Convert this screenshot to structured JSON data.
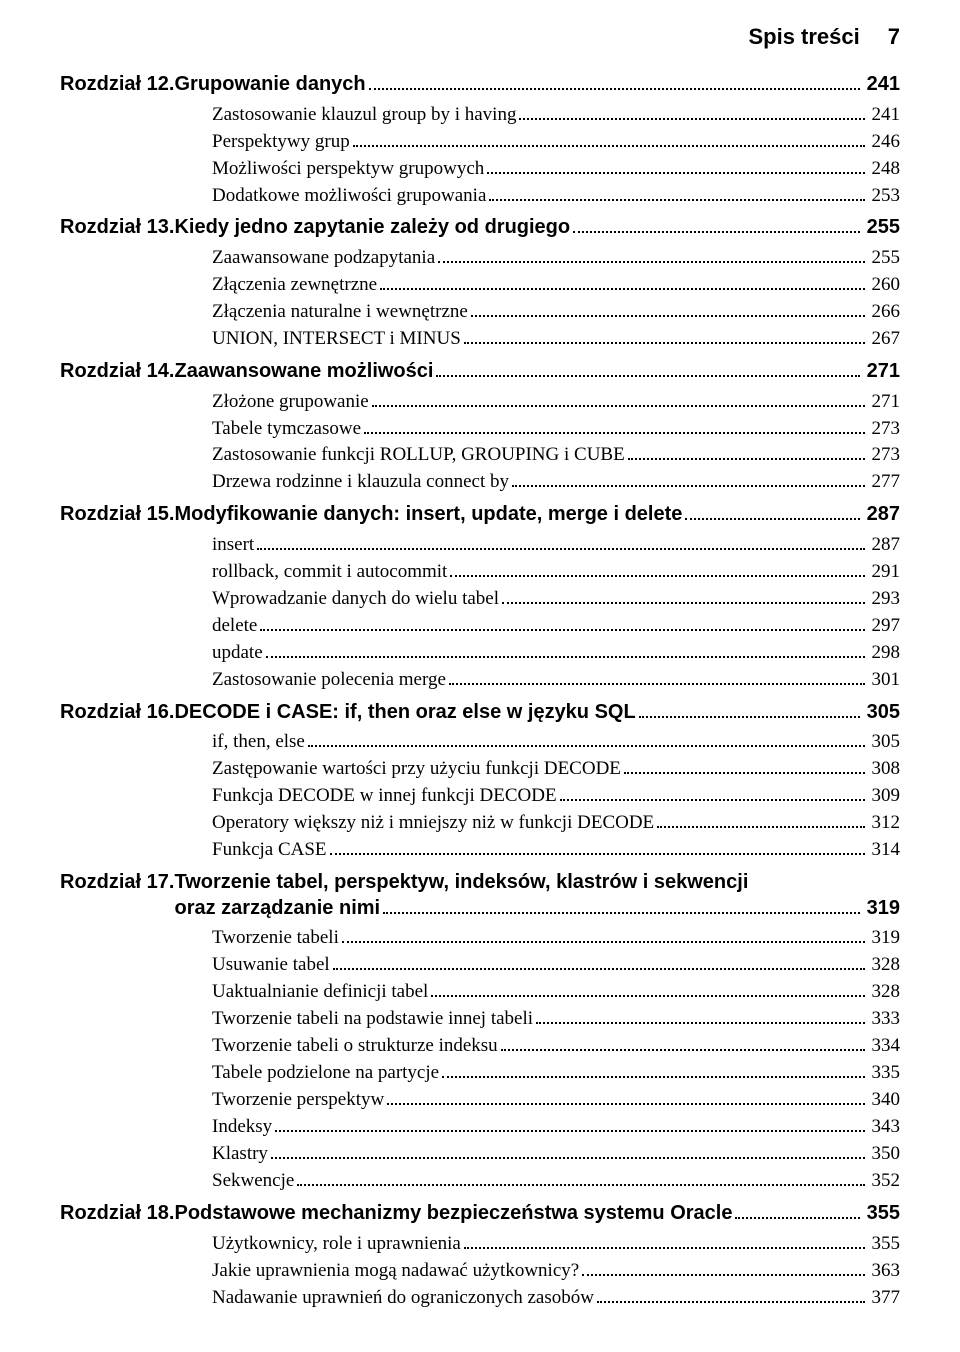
{
  "header": {
    "title": "Spis treści",
    "page_number": "7"
  },
  "chapters": [
    {
      "lead": "Rozdział 12. ",
      "title_lines": [
        "Grupowanie danych"
      ],
      "page": "241",
      "subs": [
        {
          "label": "Zastosowanie klauzul group by i having",
          "page": "241"
        },
        {
          "label": "Perspektywy grup",
          "page": "246"
        },
        {
          "label": "Możliwości perspektyw grupowych",
          "page": "248"
        },
        {
          "label": "Dodatkowe możliwości grupowania",
          "page": "253"
        }
      ]
    },
    {
      "lead": "Rozdział 13. ",
      "title_lines": [
        "Kiedy jedno zapytanie zależy od drugiego"
      ],
      "page": "255",
      "subs": [
        {
          "label": "Zaawansowane podzapytania",
          "page": "255"
        },
        {
          "label": "Złączenia zewnętrzne",
          "page": "260"
        },
        {
          "label": "Złączenia naturalne i wewnętrzne",
          "page": "266"
        },
        {
          "label": "UNION, INTERSECT i MINUS",
          "page": "267"
        }
      ]
    },
    {
      "lead": "Rozdział 14. ",
      "title_lines": [
        "Zaawansowane możliwości"
      ],
      "page": "271",
      "subs": [
        {
          "label": "Złożone grupowanie",
          "page": "271"
        },
        {
          "label": "Tabele tymczasowe",
          "page": "273"
        },
        {
          "label": "Zastosowanie funkcji ROLLUP, GROUPING i CUBE",
          "page": "273"
        },
        {
          "label": "Drzewa rodzinne i klauzula connect by",
          "page": "277"
        }
      ]
    },
    {
      "lead": "Rozdział 15. ",
      "title_lines": [
        "Modyfikowanie danych: insert, update, merge i delete"
      ],
      "page": "287",
      "subs": [
        {
          "label": "insert",
          "page": "287"
        },
        {
          "label": "rollback, commit i autocommit",
          "page": "291"
        },
        {
          "label": "Wprowadzanie danych do wielu tabel",
          "page": "293"
        },
        {
          "label": "delete",
          "page": "297"
        },
        {
          "label": "update",
          "page": "298"
        },
        {
          "label": "Zastosowanie polecenia merge",
          "page": "301"
        }
      ]
    },
    {
      "lead": "Rozdział 16. ",
      "title_lines": [
        "DECODE i CASE: if, then oraz else w języku SQL"
      ],
      "page": "305",
      "subs": [
        {
          "label": "if, then, else",
          "page": "305"
        },
        {
          "label": "Zastępowanie wartości przy użyciu funkcji DECODE",
          "page": "308"
        },
        {
          "label": "Funkcja DECODE w innej funkcji DECODE",
          "page": "309"
        },
        {
          "label": "Operatory większy niż i mniejszy niż w funkcji DECODE",
          "page": "312"
        },
        {
          "label": "Funkcja CASE",
          "page": "314"
        }
      ]
    },
    {
      "lead": "Rozdział 17. ",
      "title_lines": [
        "Tworzenie tabel, perspektyw, indeksów, klastrów i sekwencji",
        "oraz zarządzanie nimi"
      ],
      "page": "319",
      "subs": [
        {
          "label": "Tworzenie tabeli",
          "page": "319"
        },
        {
          "label": "Usuwanie tabel",
          "page": "328"
        },
        {
          "label": "Uaktualnianie definicji tabel",
          "page": "328"
        },
        {
          "label": "Tworzenie tabeli na podstawie innej tabeli",
          "page": "333"
        },
        {
          "label": "Tworzenie tabeli o strukturze indeksu",
          "page": "334"
        },
        {
          "label": "Tabele podzielone na partycje",
          "page": "335"
        },
        {
          "label": "Tworzenie perspektyw",
          "page": "340"
        },
        {
          "label": "Indeksy",
          "page": "343"
        },
        {
          "label": "Klastry",
          "page": "350"
        },
        {
          "label": "Sekwencje",
          "page": "352"
        }
      ]
    },
    {
      "lead": "Rozdział 18. ",
      "title_lines": [
        "Podstawowe mechanizmy bezpieczeństwa systemu Oracle"
      ],
      "page": "355",
      "subs": [
        {
          "label": "Użytkownicy, role i uprawnienia",
          "page": "355"
        },
        {
          "label": "Jakie uprawnienia mogą nadawać użytkownicy?",
          "page": "363"
        },
        {
          "label": "Nadawanie uprawnień do ograniczonych zasobów",
          "page": "377"
        }
      ]
    }
  ]
}
